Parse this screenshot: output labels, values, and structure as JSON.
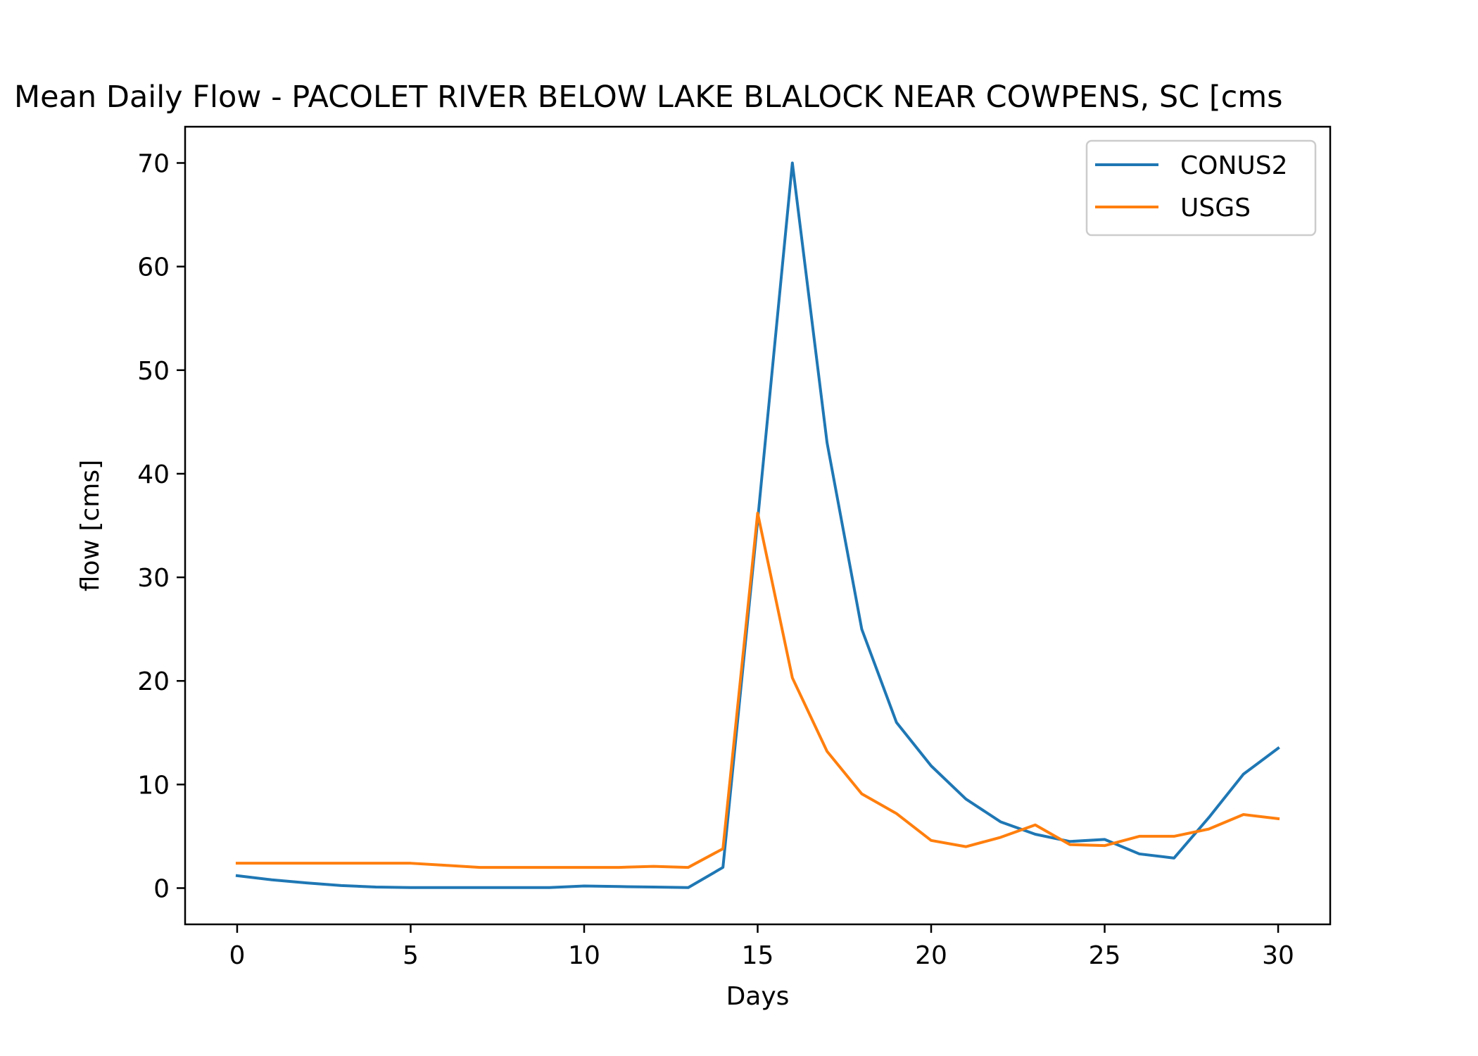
{
  "chart_data": {
    "type": "line",
    "title": "Mean Daily Flow - PACOLET RIVER BELOW LAKE BLALOCK NEAR COWPENS, SC [cms",
    "xlabel": "Days",
    "ylabel": "flow [cms]",
    "xlim": [
      -1.5,
      31.5
    ],
    "ylim": [
      -3.5,
      73.5
    ],
    "xticks": [
      0,
      5,
      10,
      15,
      20,
      25,
      30
    ],
    "yticks": [
      0,
      10,
      20,
      30,
      40,
      50,
      60,
      70
    ],
    "grid": false,
    "legend_position": "upper-right",
    "x": [
      0,
      1,
      2,
      3,
      4,
      5,
      6,
      7,
      8,
      9,
      10,
      11,
      12,
      13,
      14,
      15,
      16,
      17,
      18,
      19,
      20,
      21,
      22,
      23,
      24,
      25,
      26,
      27,
      28,
      29,
      30
    ],
    "series": [
      {
        "name": "CONUS2",
        "color": "#1f77b4",
        "values": [
          1.2,
          0.8,
          0.5,
          0.25,
          0.1,
          0.05,
          0.05,
          0.05,
          0.05,
          0.05,
          0.2,
          0.15,
          0.1,
          0.05,
          2.0,
          35.5,
          70.0,
          43.0,
          25.0,
          16.0,
          11.8,
          8.6,
          6.4,
          5.2,
          4.5,
          4.7,
          3.3,
          2.9,
          6.8,
          11.0,
          13.5
        ]
      },
      {
        "name": "USGS",
        "color": "#ff7f0e",
        "values": [
          2.4,
          2.4,
          2.4,
          2.4,
          2.4,
          2.4,
          2.2,
          2.0,
          2.0,
          2.0,
          2.0,
          2.0,
          2.1,
          2.0,
          3.8,
          36.2,
          20.3,
          13.2,
          9.1,
          7.2,
          4.6,
          4.0,
          4.9,
          6.1,
          4.2,
          4.1,
          5.0,
          5.0,
          5.7,
          7.1,
          6.7
        ]
      }
    ]
  }
}
